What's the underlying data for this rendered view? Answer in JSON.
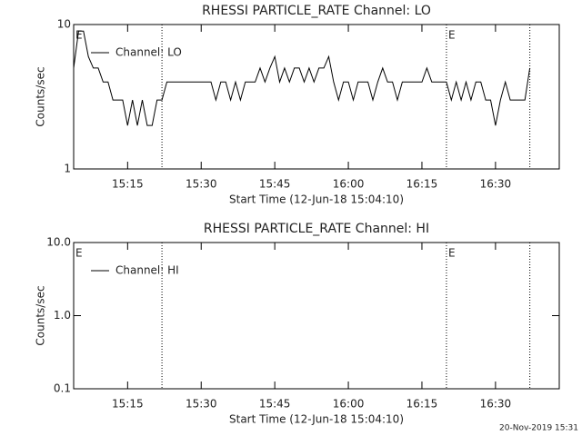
{
  "chart_data": [
    {
      "type": "line",
      "title": "RHESSI PARTICLE_RATE Channel: LO",
      "x_label": "Start Time (12-Jun-18 15:04:10)",
      "y_label": "Counts/sec",
      "log_y": true,
      "ylim": [
        1,
        10
      ],
      "yticks": [
        1,
        10
      ],
      "xlim": [
        "15:04",
        "16:43"
      ],
      "xticks": [
        "15:15",
        "15:30",
        "15:45",
        "16:00",
        "16:15",
        "16:30"
      ],
      "legend": "upper left",
      "vlines": [
        "15:22",
        "16:20",
        "16:37"
      ],
      "annotations": [
        {
          "x": "15:04",
          "text": "E"
        },
        {
          "x": "16:20",
          "text": "E"
        }
      ],
      "x": [
        "15:04",
        "15:05",
        "15:06",
        "15:07",
        "15:08",
        "15:09",
        "15:10",
        "15:11",
        "15:12",
        "15:13",
        "15:14",
        "15:15",
        "15:16",
        "15:17",
        "15:18",
        "15:19",
        "15:20",
        "15:21",
        "15:22",
        "15:23",
        "15:24",
        "15:25",
        "15:26",
        "15:27",
        "15:28",
        "15:29",
        "15:30",
        "15:31",
        "15:32",
        "15:33",
        "15:34",
        "15:35",
        "15:36",
        "15:37",
        "15:38",
        "15:39",
        "15:40",
        "15:41",
        "15:42",
        "15:43",
        "15:44",
        "15:45",
        "15:46",
        "15:47",
        "15:48",
        "15:49",
        "15:50",
        "15:51",
        "15:52",
        "15:53",
        "15:54",
        "15:55",
        "15:56",
        "15:57",
        "15:58",
        "15:59",
        "16:00",
        "16:01",
        "16:02",
        "16:03",
        "16:04",
        "16:05",
        "16:06",
        "16:07",
        "16:08",
        "16:09",
        "16:10",
        "16:11",
        "16:12",
        "16:13",
        "16:14",
        "16:15",
        "16:16",
        "16:17",
        "16:18",
        "16:19",
        "16:20",
        "16:21",
        "16:22",
        "16:23",
        "16:24",
        "16:25",
        "16:26",
        "16:27",
        "16:28",
        "16:29",
        "16:30",
        "16:31",
        "16:32",
        "16:33",
        "16:34",
        "16:35",
        "16:36",
        "16:37"
      ],
      "series": [
        {
          "name": "Channel: LO",
          "color": "#000000",
          "values": [
            5,
            9,
            9,
            6,
            5,
            5,
            4,
            4,
            3,
            3,
            3,
            2,
            3,
            2,
            3,
            2,
            2,
            3,
            3,
            4,
            4,
            4,
            4,
            4,
            4,
            4,
            4,
            4,
            4,
            3,
            4,
            4,
            3,
            4,
            3,
            4,
            4,
            4,
            5,
            4,
            5,
            6,
            4,
            5,
            4,
            5,
            5,
            4,
            5,
            4,
            5,
            5,
            6,
            4,
            3,
            4,
            4,
            3,
            4,
            4,
            4,
            3,
            4,
            5,
            4,
            4,
            3,
            4,
            4,
            4,
            4,
            4,
            5,
            4,
            4,
            4,
            4,
            3,
            4,
            3,
            4,
            3,
            4,
            4,
            3,
            3,
            2,
            3,
            4,
            3,
            3,
            3,
            3,
            5
          ]
        }
      ]
    },
    {
      "type": "line",
      "title": "RHESSI PARTICLE_RATE Channel: HI",
      "x_label": "Start Time (12-Jun-18 15:04:10)",
      "y_label": "Counts/sec",
      "log_y": true,
      "ylim": [
        0.1,
        10
      ],
      "yticks": [
        0.1,
        {
          "value": 1,
          "label": "1.0"
        },
        {
          "value": 10,
          "label": "10.0"
        }
      ],
      "xlim": [
        "15:04",
        "16:43"
      ],
      "xticks": [
        "15:15",
        "15:30",
        "15:45",
        "16:00",
        "16:15",
        "16:30"
      ],
      "legend": "upper left",
      "vlines": [
        "15:22",
        "16:20",
        "16:37"
      ],
      "annotations": [
        {
          "x": "15:04",
          "text": "E"
        },
        {
          "x": "16:20",
          "text": "E"
        }
      ],
      "x": [],
      "series": [
        {
          "name": "Channel: HI",
          "color": "#000000",
          "values": []
        }
      ]
    }
  ],
  "footer": "20-Nov-2019 15:31"
}
